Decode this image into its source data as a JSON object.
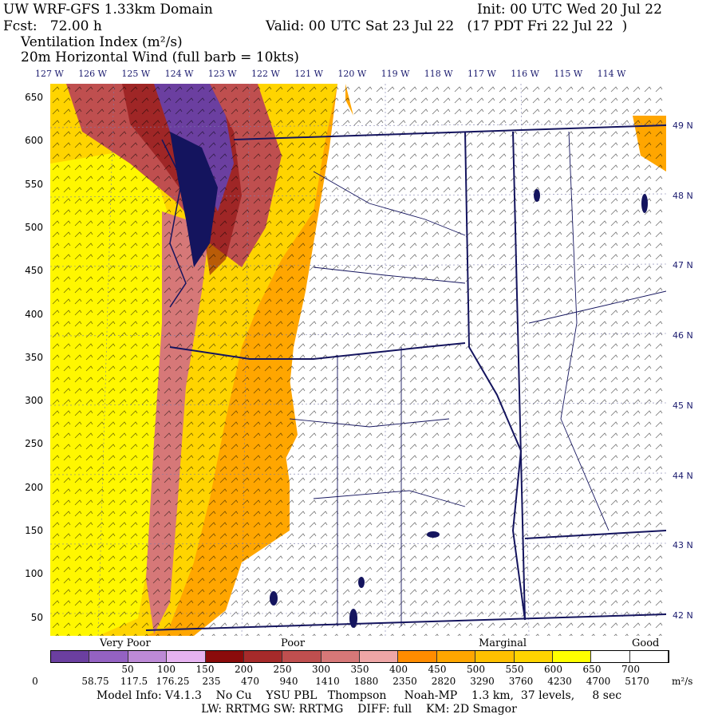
{
  "header": {
    "title": "UW WRF-GFS 1.33km Domain",
    "init": "Init: 00 UTC Wed 20 Jul 22",
    "fcst": "Fcst:   72.00 h",
    "valid": "Valid: 00 UTC Sat 23 Jul 22   (17 PDT Fri 22 Jul 22  )",
    "field1": "Ventilation Index (m²/s)",
    "field2": "20m Horizontal Wind  (full barb = 10kts)"
  },
  "longitudes": [
    "127 W",
    "126 W",
    "125 W",
    "124 W",
    "123 W",
    "122 W",
    "121 W",
    "120 W",
    "119 W",
    "118 W",
    "117 W",
    "116 W",
    "115 W",
    "114 W"
  ],
  "y_axis": [
    "650",
    "600",
    "550",
    "500",
    "450",
    "400",
    "350",
    "300",
    "250",
    "200",
    "150",
    "100",
    "50"
  ],
  "latitudes": [
    "49 N",
    "48 N",
    "47 N",
    "46 N",
    "45 N",
    "44 N",
    "43 N",
    "42 N"
  ],
  "colorbar": {
    "colors": [
      "#6b3fa0",
      "#9462c2",
      "#bd8ad6",
      "#e6b3f0",
      "#8b0b0b",
      "#a62a2a",
      "#bf4f4f",
      "#d67878",
      "#eea6a6",
      "#ff8c00",
      "#ffa600",
      "#ffc000",
      "#ffd400",
      "#ffff00",
      "#ffffff",
      "#ffffff"
    ],
    "top_labels": [
      "50",
      "100",
      "150",
      "200",
      "250",
      "300",
      "350",
      "400",
      "450",
      "500",
      "550",
      "600",
      "650",
      "700"
    ],
    "bottom_labels": [
      "0",
      "58.75",
      "117.5",
      "176.25",
      "235",
      "470",
      "940",
      "1410",
      "1880",
      "2350",
      "2820",
      "3290",
      "3760",
      "4230",
      "4700",
      "5170"
    ],
    "unit": "m²/s",
    "categories": [
      "Very Poor",
      "Poor",
      "Marginal",
      "Good"
    ]
  },
  "footer": {
    "line1": "Model Info: V4.1.3    No Cu    YSU PBL   Thompson     Noah-MP    1.3 km,  37 levels,     8 sec",
    "line2": "LW: RRTMG SW: RRTMG    DIFF: full    KM: 2D Smagor"
  }
}
